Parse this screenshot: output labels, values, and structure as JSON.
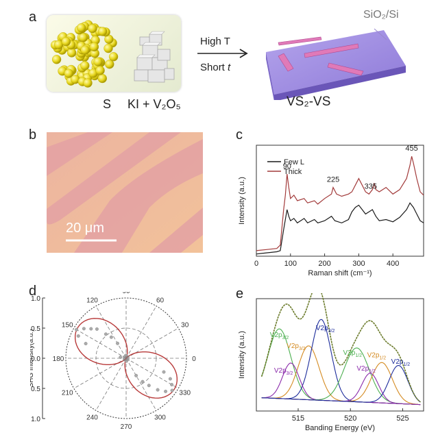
{
  "panels": {
    "a": {
      "label": "a",
      "reagent_s": "S",
      "reagent_ki": "KI + V₂O₅",
      "cond_temp": "High T",
      "cond_time_prefix": "Short ",
      "cond_time_var": "t",
      "substrate": "SiO₂/Si",
      "product": "VS₂-VS"
    },
    "b": {
      "label": "b",
      "scalebar": "20 μm"
    },
    "c": {
      "label": "c"
    },
    "d": {
      "label": "d"
    },
    "e": {
      "label": "e"
    }
  },
  "chart_data": [
    {
      "panel": "c",
      "type": "line",
      "xlabel": "Raman shift (cm⁻¹)",
      "ylabel": "Intensity (a.u.)",
      "xlim": [
        0,
        490
      ],
      "xticks": [
        0,
        100,
        200,
        300,
        400
      ],
      "legend": "top-left",
      "peak_labels": [
        90,
        225,
        335,
        455
      ],
      "series": [
        {
          "name": "Few L",
          "color": "#1a1a1a",
          "x": [
            0,
            30,
            60,
            70,
            80,
            85,
            90,
            95,
            100,
            110,
            120,
            140,
            150,
            170,
            180,
            200,
            220,
            230,
            250,
            270,
            280,
            290,
            300,
            310,
            320,
            330,
            340,
            350,
            360,
            380,
            400,
            420,
            440,
            450,
            460,
            470,
            480,
            490
          ],
          "y": [
            0.02,
            0.03,
            0.04,
            0.05,
            0.24,
            0.33,
            0.42,
            0.36,
            0.32,
            0.34,
            0.3,
            0.34,
            0.3,
            0.33,
            0.3,
            0.32,
            0.36,
            0.32,
            0.3,
            0.33,
            0.4,
            0.44,
            0.46,
            0.42,
            0.38,
            0.4,
            0.42,
            0.36,
            0.32,
            0.33,
            0.31,
            0.35,
            0.42,
            0.48,
            0.44,
            0.38,
            0.32,
            0.3
          ]
        },
        {
          "name": "Thick",
          "color": "#a23a3a",
          "x": [
            0,
            30,
            60,
            70,
            80,
            85,
            90,
            95,
            100,
            110,
            120,
            140,
            150,
            170,
            180,
            200,
            220,
            225,
            235,
            250,
            270,
            280,
            290,
            300,
            310,
            320,
            330,
            340,
            345,
            350,
            360,
            380,
            400,
            420,
            440,
            450,
            455,
            460,
            470,
            480,
            490
          ],
          "y": [
            0.05,
            0.06,
            0.07,
            0.1,
            0.42,
            0.55,
            0.74,
            0.62,
            0.52,
            0.55,
            0.5,
            0.52,
            0.48,
            0.5,
            0.47,
            0.52,
            0.56,
            0.62,
            0.56,
            0.54,
            0.56,
            0.58,
            0.64,
            0.7,
            0.64,
            0.58,
            0.56,
            0.6,
            0.66,
            0.6,
            0.58,
            0.62,
            0.56,
            0.6,
            0.7,
            0.82,
            0.9,
            0.84,
            0.7,
            0.58,
            0.55
          ]
        }
      ]
    },
    {
      "panel": "d",
      "type": "scatter",
      "subtype": "polar",
      "ylabel": "SHG Intensity(a.u.)",
      "radial_ticks": [
        "1.0",
        "0.5",
        "0.0",
        "0.5",
        "1.0"
      ],
      "angle_ticks": [
        0,
        30,
        60,
        90,
        120,
        150,
        180,
        210,
        240,
        270,
        300,
        330
      ],
      "angle_tick_labels": [
        "0",
        "30",
        "60",
        "90",
        "120",
        "150",
        "180",
        "210",
        "240",
        "270",
        "300",
        "330"
      ],
      "fit_color": "#b83a3a",
      "points_angle": [
        145,
        150,
        155,
        140,
        135,
        130,
        160,
        125,
        120,
        170,
        95,
        275,
        320,
        325,
        330,
        315,
        335,
        310,
        305,
        340,
        300
      ],
      "points_r": [
        0.9,
        1.0,
        0.92,
        0.8,
        0.72,
        0.55,
        0.75,
        0.45,
        0.3,
        0.1,
        0.05,
        0.05,
        0.9,
        0.98,
        0.92,
        0.78,
        0.85,
        0.62,
        0.5,
        0.7,
        0.35
      ]
    },
    {
      "panel": "e",
      "type": "line",
      "xlabel": "Banding Energy (eV)",
      "ylabel": "Intensity (a.u.)",
      "xlim": [
        511,
        527
      ],
      "xticks": [
        515,
        520,
        525
      ],
      "peak_labels": [
        {
          "main": "V2p",
          "sub": "3/2",
          "x": 513.2,
          "color": "#4caf50"
        },
        {
          "main": "V2p",
          "sub": "3/2",
          "x": 514.8,
          "color": "#d48a20"
        },
        {
          "main": "V2p",
          "sub": "3/2",
          "x": 517.6,
          "color": "#1a2a9a"
        },
        {
          "main": "V2p",
          "sub": "3/2",
          "x": 513.6,
          "color": "#8a2aaa"
        },
        {
          "main": "V2p",
          "sub": "1/2",
          "x": 520.2,
          "color": "#4caf50"
        },
        {
          "main": "V2p",
          "sub": "1/2",
          "x": 522.5,
          "color": "#d48a20"
        },
        {
          "main": "V2p",
          "sub": "1/2",
          "x": 521.5,
          "color": "#8a2aaa"
        },
        {
          "main": "V2p",
          "sub": "1/2",
          "x": 524.8,
          "color": "#1a2a9a"
        }
      ],
      "components": [
        {
          "center": 513.2,
          "height": 0.62,
          "width": 1.1,
          "color": "#4caf50"
        },
        {
          "center": 516.0,
          "height": 0.48,
          "width": 1.0,
          "color": "#d48a20"
        },
        {
          "center": 517.2,
          "height": 0.72,
          "width": 0.95,
          "color": "#1a2a9a"
        },
        {
          "center": 514.3,
          "height": 0.32,
          "width": 0.8,
          "color": "#8a2aaa"
        },
        {
          "center": 520.6,
          "height": 0.48,
          "width": 1.2,
          "color": "#4caf50"
        },
        {
          "center": 523.0,
          "height": 0.36,
          "width": 1.0,
          "color": "#d48a20"
        },
        {
          "center": 521.9,
          "height": 0.26,
          "width": 0.8,
          "color": "#8a2aaa"
        },
        {
          "center": 524.6,
          "height": 0.34,
          "width": 0.9,
          "color": "#1a2a9a"
        }
      ],
      "envelope_color": "#6a7a2a"
    }
  ]
}
